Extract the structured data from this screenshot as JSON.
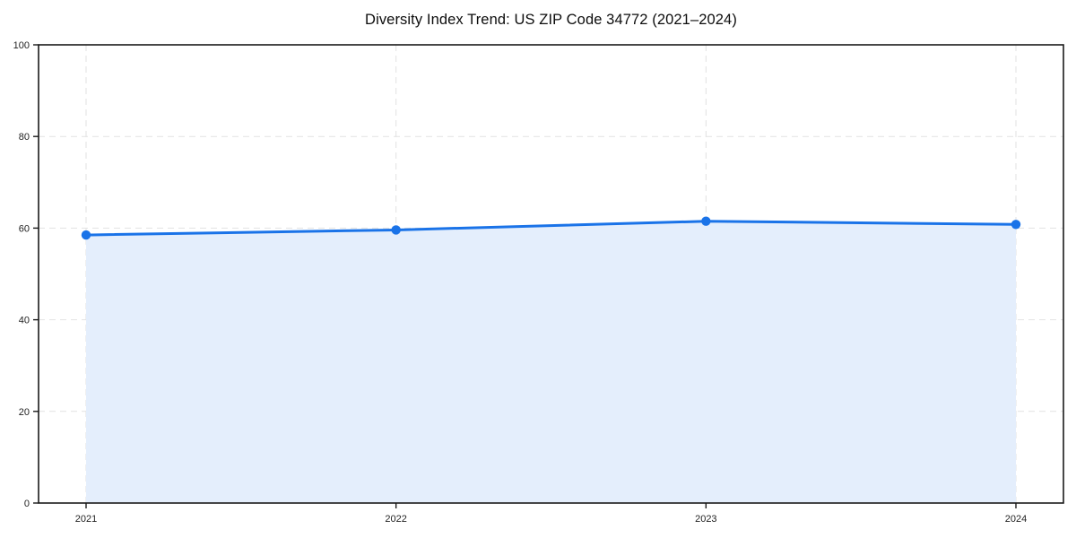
{
  "chart_data": {
    "type": "area",
    "title": "Diversity Index Trend: US ZIP Code 34772 (2021–2024)",
    "categories": [
      "2021",
      "2022",
      "2023",
      "2024"
    ],
    "values": [
      58.5,
      59.6,
      61.5,
      60.8
    ],
    "xlabel": "",
    "ylabel": "",
    "ylim": [
      0,
      100
    ],
    "yticks": [
      0,
      20,
      40,
      60,
      80,
      100
    ],
    "grid": true,
    "legend": "none",
    "colors": {
      "line": "#1a73e8",
      "marker": "#1a73e8",
      "area_fill": "#e4eefc",
      "grid": "#e2e2e2",
      "axis": "#1a1a1a",
      "tick_label": "#222222",
      "background": "#ffffff"
    }
  }
}
